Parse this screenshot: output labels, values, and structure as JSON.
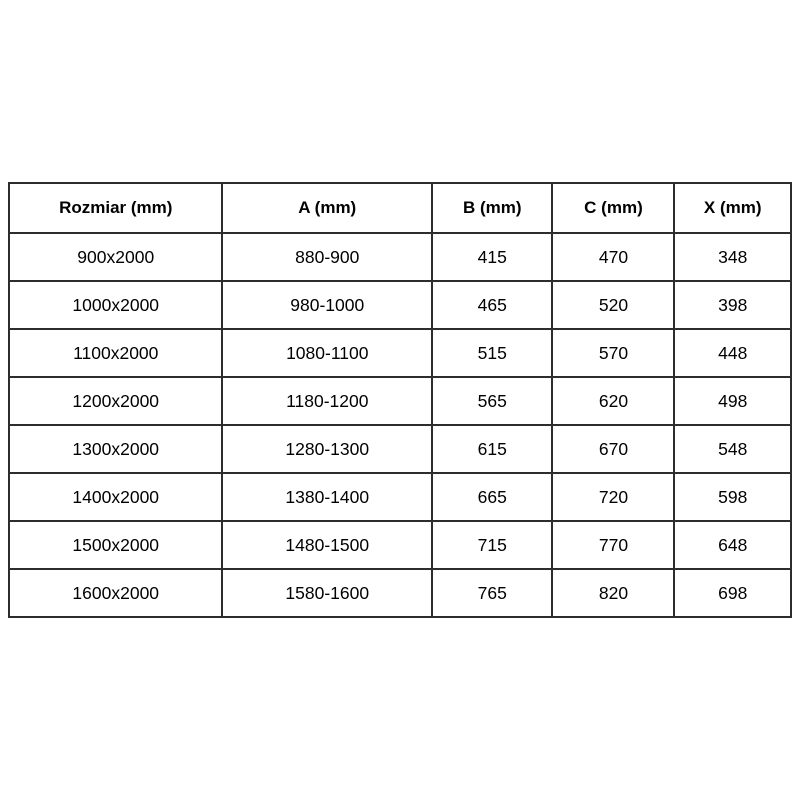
{
  "colors": {
    "background": "#ffffff",
    "border": "#2d2d2d",
    "text": "#000000"
  },
  "table": {
    "headers": [
      "Rozmiar (mm)",
      "A (mm)",
      "B (mm)",
      "C (mm)",
      "X (mm)"
    ],
    "rows": [
      [
        "900x2000",
        "880-900",
        "415",
        "470",
        "348"
      ],
      [
        "1000x2000",
        "980-1000",
        "465",
        "520",
        "398"
      ],
      [
        "1100x2000",
        "1080-1100",
        "515",
        "570",
        "448"
      ],
      [
        "1200x2000",
        "1180-1200",
        "565",
        "620",
        "498"
      ],
      [
        "1300x2000",
        "1280-1300",
        "615",
        "670",
        "548"
      ],
      [
        "1400x2000",
        "1380-1400",
        "665",
        "720",
        "598"
      ],
      [
        "1500x2000",
        "1480-1500",
        "715",
        "770",
        "648"
      ],
      [
        "1600x2000",
        "1580-1600",
        "765",
        "820",
        "698"
      ]
    ]
  }
}
